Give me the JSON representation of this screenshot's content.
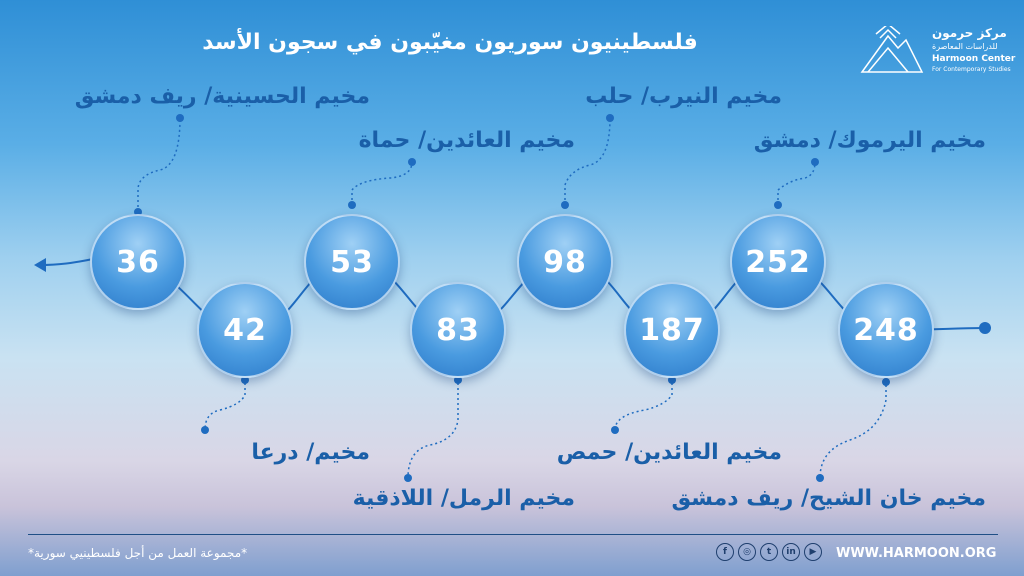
{
  "title": "فلسطينيون سوريون مغيّبون في سجون الأسد",
  "logo": {
    "ar": "مركز حرمون",
    "ar_sub": "للدراسات المعاصرة",
    "en": "Harmoon Center",
    "en_sub": "For Contemporary Studies"
  },
  "camps": [
    {
      "value": "36",
      "label": "مخيم الحسينية/ ريف دمشق"
    },
    {
      "value": "42",
      "label": "مخيم/ درعا"
    },
    {
      "value": "53",
      "label": "مخيم العائدين/ حماة"
    },
    {
      "value": "83",
      "label": "مخيم الرمل/ اللاذقية"
    },
    {
      "value": "98",
      "label": "مخيم النيرب/ حلب"
    },
    {
      "value": "187",
      "label": "مخيم العائدين/ حمص"
    },
    {
      "value": "252",
      "label": "مخيم اليرموك/ دمشق"
    },
    {
      "value": "248",
      "label": "مخيم خان الشيح/ ريف دمشق"
    }
  ],
  "footer": {
    "note": "*مجموعة العمل من أجل فلسطينيي سورية*",
    "website": "WWW.HARMOON.ORG",
    "social": [
      "facebook-icon",
      "instagram-icon",
      "twitter-icon",
      "linkedin-icon",
      "youtube-icon"
    ]
  }
}
